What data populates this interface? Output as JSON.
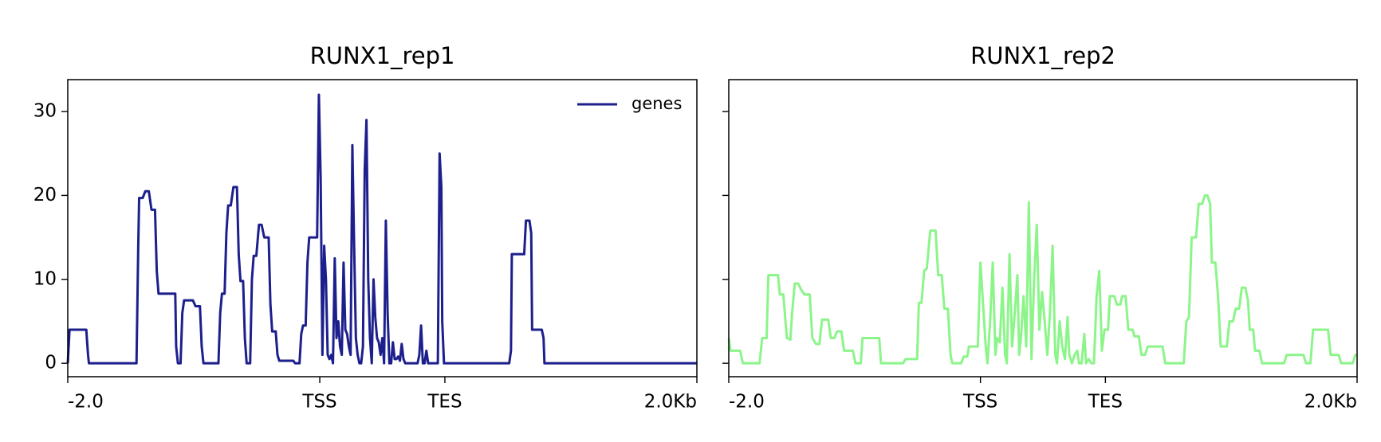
{
  "chart_data": [
    {
      "type": "line",
      "title": "RUNX1_rep1",
      "x": [
        0,
        2,
        21,
        23,
        24,
        78,
        80,
        81,
        85,
        88,
        92,
        95,
        99,
        101,
        103,
        122,
        123,
        125,
        128,
        130,
        132,
        142,
        145,
        150,
        152,
        154,
        171,
        173,
        175,
        178,
        180,
        182,
        185,
        188,
        192,
        194,
        196,
        199,
        201,
        203,
        207,
        209,
        211,
        214,
        217,
        220,
        223,
        228,
        230,
        232,
        236,
        238,
        240,
        256,
        258,
        263,
        265,
        267,
        270,
        272,
        274,
        283,
        285,
        287,
        289,
        291,
        293,
        295,
        297,
        299,
        301,
        303,
        305,
        307,
        309,
        311,
        313,
        315,
        317,
        319,
        321,
        323,
        325,
        327,
        329,
        331,
        333,
        335,
        337,
        339,
        341,
        343,
        345,
        347,
        349,
        351,
        353,
        355,
        357,
        359,
        361,
        363,
        365,
        367,
        369,
        371,
        373,
        375,
        377,
        379,
        381,
        383,
        397,
        399,
        401,
        403,
        405,
        407,
        409,
        420,
        422,
        424,
        425,
        427,
        501,
        503,
        504,
        518,
        520,
        524,
        526,
        527,
        538,
        540,
        541,
        714
      ],
      "series": [
        {
          "name": "genes",
          "color": "#1c1f8c",
          "values": [
            0,
            4,
            4,
            1,
            0,
            0,
            14,
            19.7,
            19.7,
            20.5,
            20.5,
            18.3,
            18.3,
            11,
            8.3,
            8.3,
            2,
            0,
            0,
            6,
            7.5,
            7.5,
            6.8,
            6.8,
            2,
            0,
            0,
            6,
            8.3,
            8.3,
            15.5,
            18.8,
            18.8,
            21,
            21,
            13,
            9.8,
            9.8,
            3,
            0,
            0,
            10,
            12.8,
            12.8,
            16.5,
            16.5,
            15,
            15,
            7,
            3.8,
            3.8,
            1,
            0.3,
            0.3,
            0,
            0,
            3.5,
            4.5,
            4.5,
            12,
            15,
            15,
            32,
            22,
            1,
            14,
            10,
            1,
            0.5,
            1,
            0,
            12.5,
            3,
            5,
            2,
            1,
            12,
            4,
            3.5,
            2,
            1,
            26,
            14,
            3,
            1,
            0,
            0,
            2,
            23,
            29,
            10,
            3,
            0,
            10,
            5.5,
            3,
            2.5,
            1,
            3,
            0,
            17,
            6,
            0,
            0,
            2.5,
            0.5,
            0.5,
            0.8,
            0.3,
            2.3,
            0.5,
            0,
            0,
            1,
            4.5,
            0,
            0,
            1.5,
            0,
            0,
            25,
            21,
            5,
            0,
            0,
            1.5,
            13,
            13,
            17,
            17,
            15.5,
            4,
            4,
            3,
            0,
            0
          ]
        }
      ],
      "xlim": [
        0,
        714
      ],
      "ylim": [
        -1.6,
        33.8
      ],
      "xticks": [
        {
          "value": 0,
          "label": "-2.0"
        },
        {
          "value": 286,
          "label": "TSS"
        },
        {
          "value": 428,
          "label": "TES"
        },
        {
          "value": 714,
          "label": "2.0Kb"
        }
      ],
      "yticks": [
        0,
        10,
        20,
        30
      ],
      "show_ytick_labels": true,
      "legend": "upper right"
    },
    {
      "type": "line",
      "title": "RUNX1_rep2",
      "x": [
        0,
        2,
        13,
        16,
        35,
        38,
        43,
        45,
        56,
        58,
        62,
        66,
        70,
        72,
        75,
        79,
        82,
        86,
        92,
        95,
        99,
        103,
        106,
        113,
        116,
        120,
        123,
        128,
        131,
        141,
        144,
        150,
        152,
        171,
        173,
        198,
        201,
        214,
        216,
        219,
        222,
        225,
        229,
        235,
        238,
        242,
        245,
        249,
        252,
        254,
        264,
        267,
        271,
        273,
        283,
        286,
        289,
        292,
        294,
        297,
        300,
        303,
        305,
        308,
        311,
        314,
        316,
        319,
        322,
        325,
        328,
        330,
        332,
        335,
        338,
        341,
        344,
        347,
        350,
        353,
        356,
        359,
        362,
        365,
        368,
        371,
        373,
        376,
        379,
        382,
        385,
        387,
        390,
        393,
        396,
        398,
        401,
        404,
        406,
        409,
        412,
        415,
        418,
        421,
        424,
        427,
        431,
        433,
        438,
        441,
        445,
        447,
        451,
        454,
        459,
        461,
        466,
        469,
        473,
        476,
        493,
        496,
        517,
        520,
        523,
        526,
        531,
        534,
        538,
        541,
        544,
        547,
        549,
        553,
        556,
        559,
        566,
        569,
        573,
        576,
        580,
        583,
        587,
        590,
        592,
        596,
        598,
        603,
        606,
        631,
        634,
        653,
        656,
        661,
        664,
        681,
        684,
        693,
        696,
        709,
        712,
        714
      ],
      "series": [
        {
          "color": "#8cf58a",
          "values": [
            3,
            1.5,
            1.5,
            0,
            0,
            3,
            3,
            10.5,
            10.5,
            8.2,
            8.2,
            3,
            2.8,
            6,
            9.5,
            9.5,
            8.8,
            8.2,
            8.2,
            3,
            2.3,
            2.3,
            5.2,
            5.2,
            3,
            3,
            3.8,
            3.8,
            1.5,
            1.5,
            0,
            0,
            3,
            3,
            0,
            0,
            0.5,
            0.5,
            7.2,
            7.2,
            11,
            11.3,
            15.8,
            15.8,
            10.5,
            10.5,
            6.5,
            6.5,
            1,
            0,
            0,
            0.8,
            0.8,
            2,
            2,
            12,
            7,
            2,
            0,
            5,
            12,
            1,
            3,
            2.5,
            9,
            1,
            0,
            13,
            2,
            6,
            10.5,
            1,
            3,
            8,
            2,
            19.2,
            0.5,
            10,
            16.5,
            4,
            8.5,
            5,
            1,
            6,
            14,
            1,
            0,
            5,
            2,
            0.5,
            5.5,
            1,
            0,
            1,
            1.5,
            0,
            0,
            3.5,
            0,
            0.5,
            0,
            0,
            8,
            11,
            1.5,
            4,
            4,
            8,
            8,
            7,
            7,
            8,
            8,
            4,
            4,
            3.2,
            3.2,
            1,
            1,
            2,
            2,
            0,
            0,
            5,
            5.5,
            15,
            15,
            19,
            19,
            20,
            20,
            19,
            12,
            12,
            8,
            2,
            2,
            5,
            5,
            6.5,
            6.5,
            9,
            9,
            7.5,
            4,
            4,
            1.5,
            1.5,
            0,
            0,
            1,
            1,
            0,
            0,
            4,
            4,
            1,
            1,
            0,
            0,
            1,
            1
          ]
        }
      ],
      "xlim": [
        0,
        714
      ],
      "ylim": [
        -1.6,
        33.8
      ],
      "xticks": [
        {
          "value": 0,
          "label": "-2.0"
        },
        {
          "value": 286,
          "label": "TSS"
        },
        {
          "value": 428,
          "label": "TES"
        },
        {
          "value": 714,
          "label": "2.0Kb"
        }
      ],
      "yticks": [
        0,
        10,
        20,
        30
      ],
      "show_ytick_labels": false
    }
  ]
}
